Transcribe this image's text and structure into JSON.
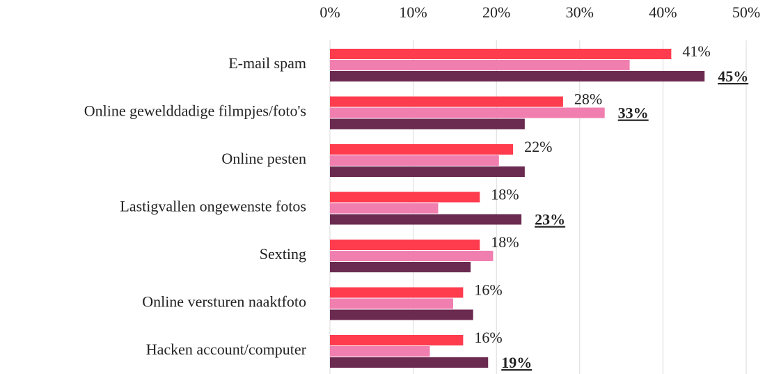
{
  "chart_data": {
    "type": "bar",
    "orientation": "horizontal",
    "categories": [
      "E-mail spam",
      "Online gewelddadige filmpjes/foto's",
      "Online pesten",
      "Lastigvallen ongewenste fotos",
      "Sexting",
      "Online versturen naaktfoto",
      "Hacken account/computer"
    ],
    "series": [
      {
        "color": "#ff3b4e",
        "values": [
          41,
          28,
          22,
          18,
          18,
          16,
          16
        ],
        "value_labels": [
          "41%",
          "28%",
          "22%",
          "18%",
          "18%",
          "16%",
          "16%"
        ]
      },
      {
        "color": "#f07fb0",
        "values": [
          36,
          33,
          20.3,
          13,
          19.6,
          14.8,
          12
        ],
        "value_labels": [
          null,
          "33%",
          null,
          null,
          null,
          null,
          null
        ]
      },
      {
        "color": "#6b2a50",
        "values": [
          45,
          23.4,
          23.4,
          23,
          16.9,
          17.2,
          19
        ],
        "value_labels": [
          "45%",
          null,
          null,
          "23%",
          null,
          null,
          "19%"
        ]
      }
    ],
    "xlim": [
      0,
      50
    ],
    "xticks": [
      {
        "value": 0,
        "label": "0%"
      },
      {
        "value": 10,
        "label": "10%"
      },
      {
        "value": 20,
        "label": "20%"
      },
      {
        "value": 30,
        "label": "30%"
      },
      {
        "value": 40,
        "label": "40%"
      },
      {
        "value": 50,
        "label": "50%"
      }
    ],
    "grid": true
  }
}
